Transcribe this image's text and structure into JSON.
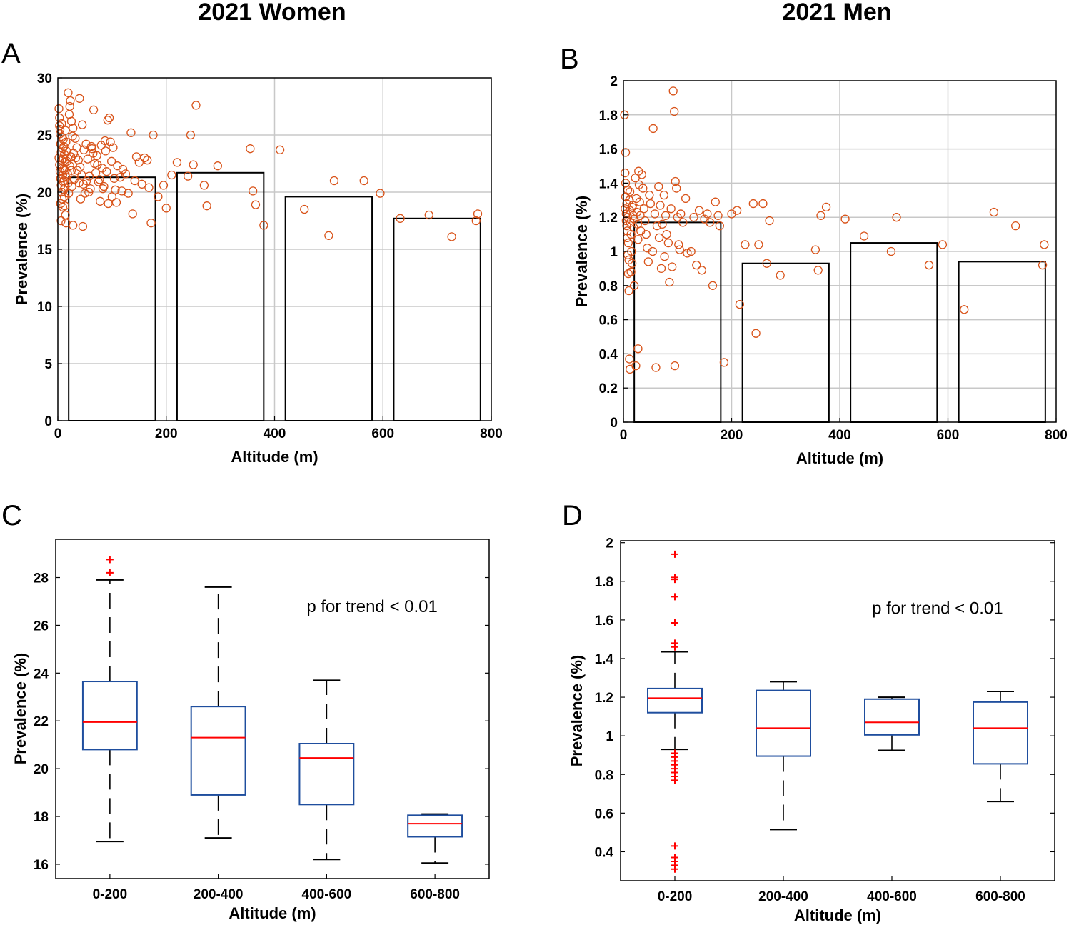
{
  "colors": {
    "scatter": "#d95319",
    "box": "#1f4e9e",
    "median": "#ff0000",
    "outlier": "#ff0000",
    "bar_edge": "#000000",
    "grid": "#c8c8c8"
  },
  "figure": {
    "col_titles": [
      "2021 Women",
      "2021 Men"
    ],
    "panel_labels": [
      "A",
      "B",
      "C",
      "D"
    ]
  },
  "chart_data": [
    {
      "panel": "A",
      "type": "scatter",
      "title": "2021 Women",
      "xlabel": "Altitude (m)",
      "ylabel": "Prevalence (%)",
      "xlim": [
        0,
        800
      ],
      "ylim": [
        0,
        30
      ],
      "xticks": [
        0,
        200,
        400,
        600,
        800
      ],
      "yticks": [
        0,
        5,
        10,
        15,
        20,
        25,
        30
      ],
      "grid": true,
      "bars": [
        {
          "x0": 20,
          "x1": 180,
          "value": 21.3
        },
        {
          "x0": 220,
          "x1": 380,
          "value": 21.7
        },
        {
          "x0": 420,
          "x1": 580,
          "value": 19.6
        },
        {
          "x0": 620,
          "x1": 780,
          "value": 17.7
        }
      ],
      "points": [
        [
          2,
          27.3
        ],
        [
          3,
          25.8
        ],
        [
          4,
          25.1
        ],
        [
          5,
          24.2
        ],
        [
          6,
          23.5
        ],
        [
          7,
          22.8
        ],
        [
          8,
          22.1
        ],
        [
          9,
          21.5
        ],
        [
          10,
          20.9
        ],
        [
          11,
          20.2
        ],
        [
          12,
          19.6
        ],
        [
          13,
          18.8
        ],
        [
          14,
          18.0
        ],
        [
          15,
          17.3
        ],
        [
          2,
          23.0
        ],
        [
          3,
          22.4
        ],
        [
          4,
          21.8
        ],
        [
          5,
          21.2
        ],
        [
          6,
          20.6
        ],
        [
          7,
          20.0
        ],
        [
          8,
          19.4
        ],
        [
          9,
          18.7
        ],
        [
          10,
          24.6
        ],
        [
          11,
          24.0
        ],
        [
          12,
          23.3
        ],
        [
          13,
          22.6
        ],
        [
          14,
          21.9
        ],
        [
          15,
          21.3
        ],
        [
          3,
          26.5
        ],
        [
          4,
          25.5
        ],
        [
          5,
          19.0
        ],
        [
          6,
          17.5
        ],
        [
          7,
          26.0
        ],
        [
          8,
          24.8
        ],
        [
          9,
          23.8
        ],
        [
          10,
          22.9
        ],
        [
          11,
          22.0
        ],
        [
          12,
          21.0
        ],
        [
          13,
          20.4
        ],
        [
          14,
          25.4
        ],
        [
          15,
          24.4
        ],
        [
          16,
          23.6
        ],
        [
          17,
          22.7
        ],
        [
          18,
          21.6
        ],
        [
          19,
          20.8
        ],
        [
          20,
          19.9
        ],
        [
          21,
          26.8
        ],
        [
          22,
          22.3
        ],
        [
          23,
          28.0
        ],
        [
          24,
          23.1
        ],
        [
          25,
          21.9
        ],
        [
          26,
          20.5
        ],
        [
          27,
          24.9
        ],
        [
          28,
          17.1
        ],
        [
          29,
          23.4
        ],
        [
          30,
          21.1
        ],
        [
          19,
          28.7
        ],
        [
          22,
          27.5
        ],
        [
          25,
          26.2
        ],
        [
          28,
          25.6
        ],
        [
          32,
          24.7
        ],
        [
          35,
          23.9
        ],
        [
          38,
          22.8
        ],
        [
          41,
          22.2
        ],
        [
          44,
          21.5
        ],
        [
          47,
          20.7
        ],
        [
          50,
          19.9
        ],
        [
          40,
          28.2
        ],
        [
          45,
          25.9
        ],
        [
          48,
          23.7
        ],
        [
          52,
          24.2
        ],
        [
          55,
          22.9
        ],
        [
          58,
          21.4
        ],
        [
          60,
          20.3
        ],
        [
          63,
          23.8
        ],
        [
          66,
          27.2
        ],
        [
          68,
          22.5
        ],
        [
          70,
          21.7
        ],
        [
          72,
          23.2
        ],
        [
          75,
          20.9
        ],
        [
          78,
          19.2
        ],
        [
          80,
          24.1
        ],
        [
          82,
          22.1
        ],
        [
          85,
          20.5
        ],
        [
          88,
          23.6
        ],
        [
          90,
          21.8
        ],
        [
          92,
          26.3
        ],
        [
          95,
          26.5
        ],
        [
          97,
          24.4
        ],
        [
          99,
          22.7
        ],
        [
          100,
          19.6
        ],
        [
          102,
          23.9
        ],
        [
          104,
          21.2
        ],
        [
          106,
          20.2
        ],
        [
          108,
          19.1
        ],
        [
          110,
          22.3
        ],
        [
          115,
          21.3
        ],
        [
          118,
          20.1
        ],
        [
          120,
          22.0
        ],
        [
          125,
          21.6
        ],
        [
          130,
          19.9
        ],
        [
          135,
          25.2
        ],
        [
          138,
          18.1
        ],
        [
          142,
          21.0
        ],
        [
          145,
          23.1
        ],
        [
          150,
          22.6
        ],
        [
          155,
          20.7
        ],
        [
          160,
          23.0
        ],
        [
          165,
          22.8
        ],
        [
          168,
          20.4
        ],
        [
          172,
          17.3
        ],
        [
          176,
          25.0
        ],
        [
          33,
          23.0
        ],
        [
          36,
          21.9
        ],
        [
          39,
          20.8
        ],
        [
          42,
          19.4
        ],
        [
          46,
          17.0
        ],
        [
          53,
          21.0
        ],
        [
          57,
          20.0
        ],
        [
          62,
          24.0
        ],
        [
          65,
          23.4
        ],
        [
          73,
          22.4
        ],
        [
          77,
          21.1
        ],
        [
          83,
          20.3
        ],
        [
          87,
          24.5
        ],
        [
          93,
          19.0
        ],
        [
          185,
          19.6
        ],
        [
          195,
          20.6
        ],
        [
          200,
          18.6
        ],
        [
          210,
          21.5
        ],
        [
          220,
          22.6
        ],
        [
          240,
          21.4
        ],
        [
          245,
          25.0
        ],
        [
          250,
          22.4
        ],
        [
          255,
          27.6
        ],
        [
          270,
          20.6
        ],
        [
          275,
          18.8
        ],
        [
          295,
          22.3
        ],
        [
          355,
          23.8
        ],
        [
          360,
          20.1
        ],
        [
          365,
          18.9
        ],
        [
          380,
          17.1
        ],
        [
          410,
          23.7
        ],
        [
          455,
          18.5
        ],
        [
          500,
          16.2
        ],
        [
          510,
          21.0
        ],
        [
          565,
          21.0
        ],
        [
          595,
          19.9
        ],
        [
          632,
          17.7
        ],
        [
          685,
          18.0
        ],
        [
          727,
          16.1
        ],
        [
          775,
          18.1
        ],
        [
          772,
          17.5
        ]
      ]
    },
    {
      "panel": "B",
      "type": "scatter",
      "title": "2021 Men",
      "xlabel": "Altitude (m)",
      "ylabel": "Prevalence (%)",
      "xlim": [
        0,
        800
      ],
      "ylim": [
        0,
        2
      ],
      "xticks": [
        0,
        200,
        400,
        600,
        800
      ],
      "yticks": [
        0,
        0.2,
        0.4,
        0.6,
        0.8,
        1,
        1.2,
        1.4,
        1.6,
        1.8,
        2
      ],
      "grid": true,
      "bars": [
        {
          "x0": 20,
          "x1": 180,
          "value": 1.17
        },
        {
          "x0": 220,
          "x1": 380,
          "value": 0.93
        },
        {
          "x0": 420,
          "x1": 580,
          "value": 1.05
        },
        {
          "x0": 620,
          "x1": 780,
          "value": 0.94
        }
      ],
      "points": [
        [
          2,
          1.8
        ],
        [
          3,
          1.46
        ],
        [
          4,
          1.32
        ],
        [
          5,
          1.22
        ],
        [
          6,
          1.15
        ],
        [
          7,
          1.08
        ],
        [
          8,
          0.98
        ],
        [
          9,
          0.87
        ],
        [
          10,
          0.77
        ],
        [
          11,
          0.37
        ],
        [
          12,
          0.31
        ],
        [
          4,
          1.4
        ],
        [
          6,
          1.28
        ],
        [
          8,
          1.2
        ],
        [
          3,
          1.25
        ],
        [
          5,
          1.18
        ],
        [
          7,
          1.12
        ],
        [
          9,
          1.05
        ],
        [
          10,
          0.95
        ],
        [
          11,
          1.3
        ],
        [
          12,
          1.24
        ],
        [
          13,
          1.17
        ],
        [
          14,
          1.1
        ],
        [
          15,
          1.0
        ],
        [
          16,
          0.93
        ],
        [
          17,
          1.27
        ],
        [
          18,
          1.21
        ],
        [
          19,
          1.14
        ],
        [
          4,
          1.58
        ],
        [
          8,
          1.36
        ],
        [
          12,
          1.35
        ],
        [
          16,
          1.26
        ],
        [
          20,
          1.19
        ],
        [
          22,
          1.43
        ],
        [
          24,
          1.31
        ],
        [
          25,
          1.23
        ],
        [
          26,
          1.16
        ],
        [
          27,
          1.07
        ],
        [
          28,
          1.47
        ],
        [
          29,
          1.39
        ],
        [
          30,
          1.29
        ],
        [
          31,
          1.21
        ],
        [
          14,
          0.88
        ],
        [
          20,
          0.8
        ],
        [
          23,
          0.33
        ],
        [
          27,
          0.43
        ],
        [
          32,
          1.12
        ],
        [
          34,
          1.45
        ],
        [
          36,
          1.37
        ],
        [
          38,
          1.25
        ],
        [
          40,
          1.18
        ],
        [
          42,
          1.1
        ],
        [
          44,
          1.02
        ],
        [
          46,
          0.94
        ],
        [
          48,
          1.33
        ],
        [
          50,
          1.28
        ],
        [
          55,
          1.72
        ],
        [
          58,
          1.22
        ],
        [
          60,
          0.32
        ],
        [
          62,
          1.15
        ],
        [
          65,
          1.38
        ],
        [
          68,
          1.27
        ],
        [
          70,
          0.9
        ],
        [
          72,
          1.16
        ],
        [
          75,
          1.33
        ],
        [
          78,
          1.21
        ],
        [
          80,
          1.1
        ],
        [
          85,
          0.82
        ],
        [
          88,
          1.25
        ],
        [
          90,
          0.91
        ],
        [
          92,
          1.94
        ],
        [
          94,
          1.82
        ],
        [
          96,
          1.41
        ],
        [
          98,
          1.37
        ],
        [
          100,
          1.2
        ],
        [
          102,
          1.04
        ],
        [
          104,
          1.01
        ],
        [
          106,
          1.22
        ],
        [
          110,
          1.17
        ],
        [
          115,
          1.31
        ],
        [
          118,
          0.99
        ],
        [
          125,
          1.0
        ],
        [
          130,
          1.2
        ],
        [
          135,
          0.92
        ],
        [
          140,
          1.24
        ],
        [
          145,
          0.89
        ],
        [
          150,
          1.19
        ],
        [
          155,
          1.22
        ],
        [
          160,
          1.17
        ],
        [
          165,
          0.8
        ],
        [
          170,
          1.29
        ],
        [
          175,
          1.21
        ],
        [
          178,
          1.15
        ],
        [
          95,
          0.33
        ],
        [
          54,
          1.0
        ],
        [
          66,
          1.08
        ],
        [
          83,
          1.05
        ],
        [
          76,
          0.97
        ],
        [
          186,
          0.35
        ],
        [
          200,
          1.22
        ],
        [
          210,
          1.24
        ],
        [
          215,
          0.69
        ],
        [
          225,
          1.04
        ],
        [
          240,
          1.28
        ],
        [
          245,
          0.52
        ],
        [
          250,
          1.04
        ],
        [
          258,
          1.28
        ],
        [
          265,
          0.93
        ],
        [
          270,
          1.18
        ],
        [
          290,
          0.86
        ],
        [
          355,
          1.01
        ],
        [
          360,
          0.89
        ],
        [
          365,
          1.21
        ],
        [
          375,
          1.26
        ],
        [
          410,
          1.19
        ],
        [
          445,
          1.09
        ],
        [
          495,
          1.0
        ],
        [
          505,
          1.2
        ],
        [
          565,
          0.92
        ],
        [
          590,
          1.04
        ],
        [
          630,
          0.66
        ],
        [
          685,
          1.23
        ],
        [
          725,
          1.15
        ],
        [
          775,
          0.92
        ],
        [
          778,
          1.04
        ]
      ]
    },
    {
      "panel": "C",
      "type": "box",
      "xlabel": "Altitude (m)",
      "ylabel": "Prevalence (%)",
      "categories": [
        "0-200",
        "200-400",
        "400-600",
        "600-800"
      ],
      "ylim": [
        15.4,
        29.6
      ],
      "yticks": [
        16,
        18,
        20,
        22,
        24,
        26,
        28
      ],
      "annotation": "p for trend < 0.01",
      "boxes": [
        {
          "q1": 20.8,
          "median": 21.95,
          "q3": 23.65,
          "whisker_low": 16.95,
          "whisker_high": 27.9,
          "outliers": [
            28.2,
            28.75
          ]
        },
        {
          "q1": 18.9,
          "median": 21.3,
          "q3": 22.6,
          "whisker_low": 17.1,
          "whisker_high": 27.6,
          "outliers": []
        },
        {
          "q1": 18.5,
          "median": 20.45,
          "q3": 21.05,
          "whisker_low": 16.2,
          "whisker_high": 23.7,
          "outliers": []
        },
        {
          "q1": 17.15,
          "median": 17.7,
          "q3": 18.05,
          "whisker_low": 16.05,
          "whisker_high": 18.1,
          "outliers": []
        }
      ]
    },
    {
      "panel": "D",
      "type": "box",
      "xlabel": "Altitude (m)",
      "ylabel": "Prevalence (%)",
      "categories": [
        "0-200",
        "200-400",
        "400-600",
        "600-800"
      ],
      "ylim": [
        0.25,
        2.01
      ],
      "yticks": [
        0.4,
        0.6,
        0.8,
        1,
        1.2,
        1.4,
        1.6,
        1.8,
        2
      ],
      "annotation": "p for trend < 0.01",
      "boxes": [
        {
          "q1": 1.12,
          "median": 1.195,
          "q3": 1.245,
          "whisker_low": 0.93,
          "whisker_high": 1.435,
          "outliers": [
            1.94,
            1.82,
            1.81,
            1.72,
            1.585,
            1.48,
            1.46,
            0.91,
            0.89,
            0.87,
            0.85,
            0.83,
            0.81,
            0.79,
            0.77,
            0.43,
            0.37,
            0.35,
            0.33,
            0.31
          ]
        },
        {
          "q1": 0.895,
          "median": 1.04,
          "q3": 1.235,
          "whisker_low": 0.515,
          "whisker_high": 1.28,
          "outliers": []
        },
        {
          "q1": 1.005,
          "median": 1.07,
          "q3": 1.19,
          "whisker_low": 0.925,
          "whisker_high": 1.2,
          "outliers": []
        },
        {
          "q1": 0.855,
          "median": 1.04,
          "q3": 1.175,
          "whisker_low": 0.66,
          "whisker_high": 1.23,
          "outliers": []
        }
      ]
    }
  ]
}
